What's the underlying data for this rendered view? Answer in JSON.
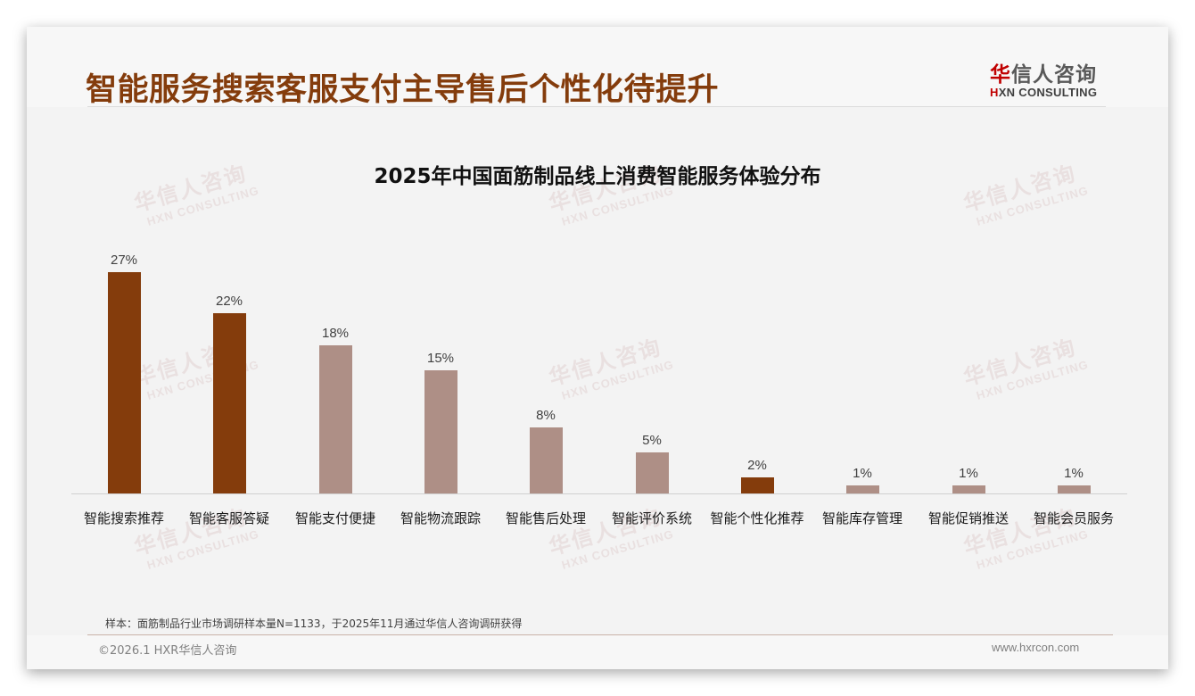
{
  "header": {
    "title": "智能服务搜索客服支付主导售后个性化待提升",
    "logo_cn_first": "华",
    "logo_cn_rest": "信人咨询",
    "logo_en_first": "H",
    "logo_en_rest": "XN CONSULTING"
  },
  "watermark": {
    "cn": "华信人咨询",
    "en": "HXN CONSULTING"
  },
  "colors": {
    "highlight": "#843c0c",
    "normal": "#ae8f86",
    "title": "#843c0c"
  },
  "chart_data": {
    "type": "bar",
    "title": "2025年中国面筋制品线上消费智能服务体验分布",
    "xlabel": "",
    "ylabel": "",
    "ylim": [
      0,
      30
    ],
    "grid": false,
    "legend": null,
    "categories": [
      "智能搜索推荐",
      "智能客服答疑",
      "智能支付便捷",
      "智能物流跟踪",
      "智能售后处理",
      "智能评价系统",
      "智能个性化推荐",
      "智能库存管理",
      "智能促销推送",
      "智能会员服务"
    ],
    "values": [
      27,
      22,
      18,
      15,
      8,
      5,
      2,
      1,
      1,
      1
    ],
    "labels": [
      "27%",
      "22%",
      "18%",
      "15%",
      "8%",
      "5%",
      "2%",
      "1%",
      "1%",
      "1%"
    ],
    "highlighted": [
      true,
      true,
      false,
      false,
      false,
      false,
      true,
      false,
      false,
      false
    ]
  },
  "footer": {
    "note": "样本：面筋制品行业市场调研样本量N=1133，于2025年11月通过华信人咨询调研获得",
    "copyright": "©2026.1 HXR华信人咨询",
    "website": "www.hxrcon.com"
  }
}
